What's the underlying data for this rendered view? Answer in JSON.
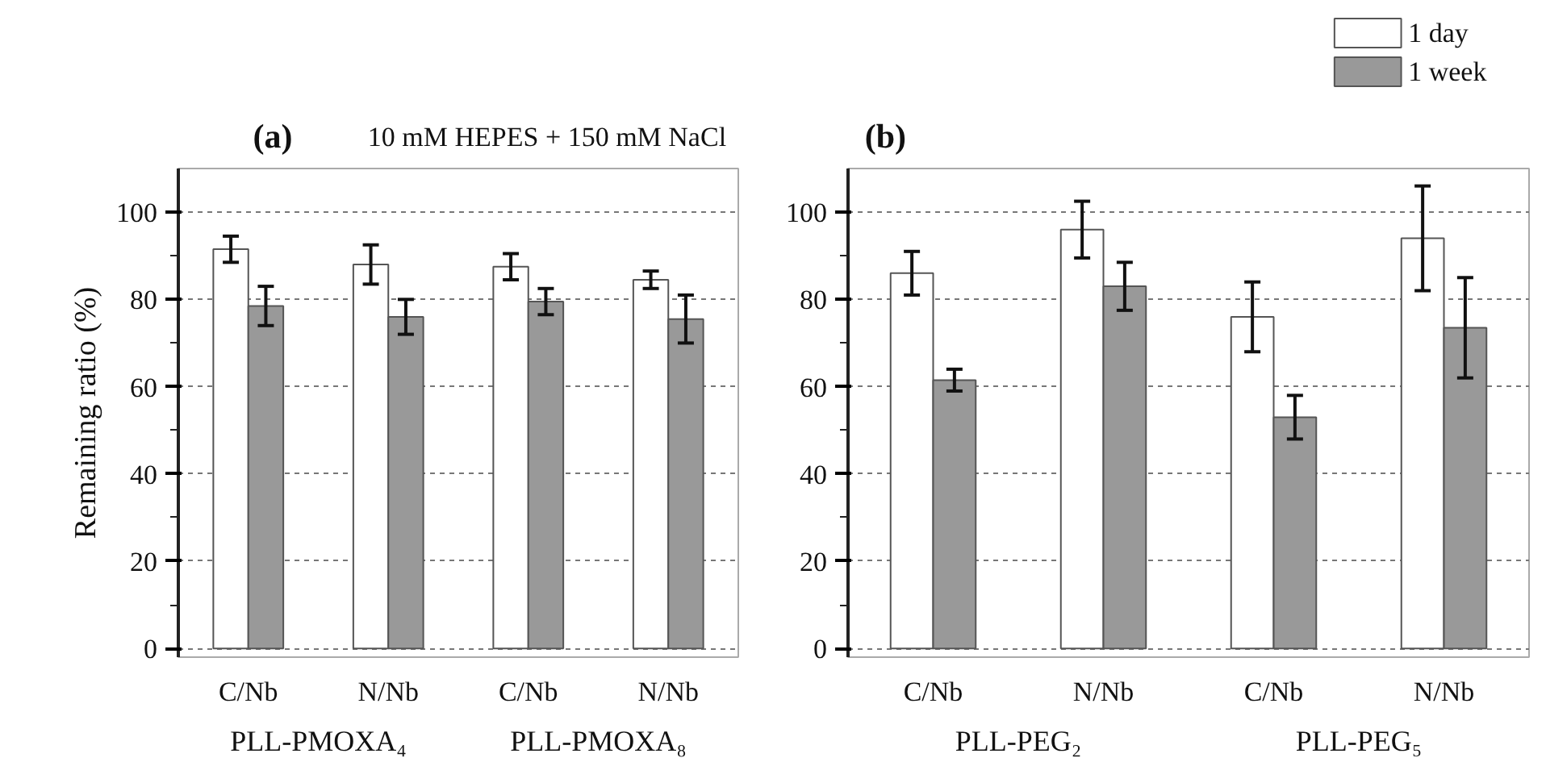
{
  "chart_data": [
    {
      "type": "bar",
      "title": "10 mM HEPES + 150 mM NaCl",
      "ylabel": "Remaining ratio (%)",
      "annotations": [
        "(a)",
        "PLL-PMOXA₄",
        "PLL-PMOXA₈"
      ],
      "categories": [
        "C/Nb",
        "N/Nb",
        "C/Nb",
        "N/Nb"
      ],
      "series": [
        {
          "color": "#ffffff",
          "values": [
            91.5,
            88,
            87.5,
            84.5
          ],
          "errors": [
            3,
            4.5,
            3,
            2
          ]
        },
        {
          "color": "#999999",
          "values": [
            78.5,
            76,
            79.5,
            75.5
          ],
          "errors": [
            4.5,
            4,
            3,
            5.5
          ]
        }
      ],
      "ylim": [
        -2,
        110
      ],
      "yticks": [
        0,
        20,
        40,
        60,
        80,
        100
      ],
      "grid": "y",
      "legend": false
    },
    {
      "type": "bar",
      "annotations": [
        "(b)",
        "PLL-PEG₂",
        "PLL-PEG₅"
      ],
      "categories": [
        "C/Nb",
        "N/Nb",
        "C/Nb",
        "N/Nb"
      ],
      "series": [
        {
          "name": "1 day",
          "color": "#ffffff",
          "values": [
            86,
            96,
            76,
            94
          ],
          "errors": [
            5,
            6.5,
            8,
            12
          ]
        },
        {
          "name": "1 week",
          "color": "#999999",
          "values": [
            61.5,
            83,
            53,
            73.5
          ],
          "errors": [
            2.5,
            5.5,
            5,
            11.5
          ]
        }
      ],
      "ylim": [
        -2,
        110
      ],
      "yticks": [
        0,
        20,
        40,
        60,
        80,
        100
      ],
      "grid": "y",
      "legend": "top right"
    }
  ]
}
